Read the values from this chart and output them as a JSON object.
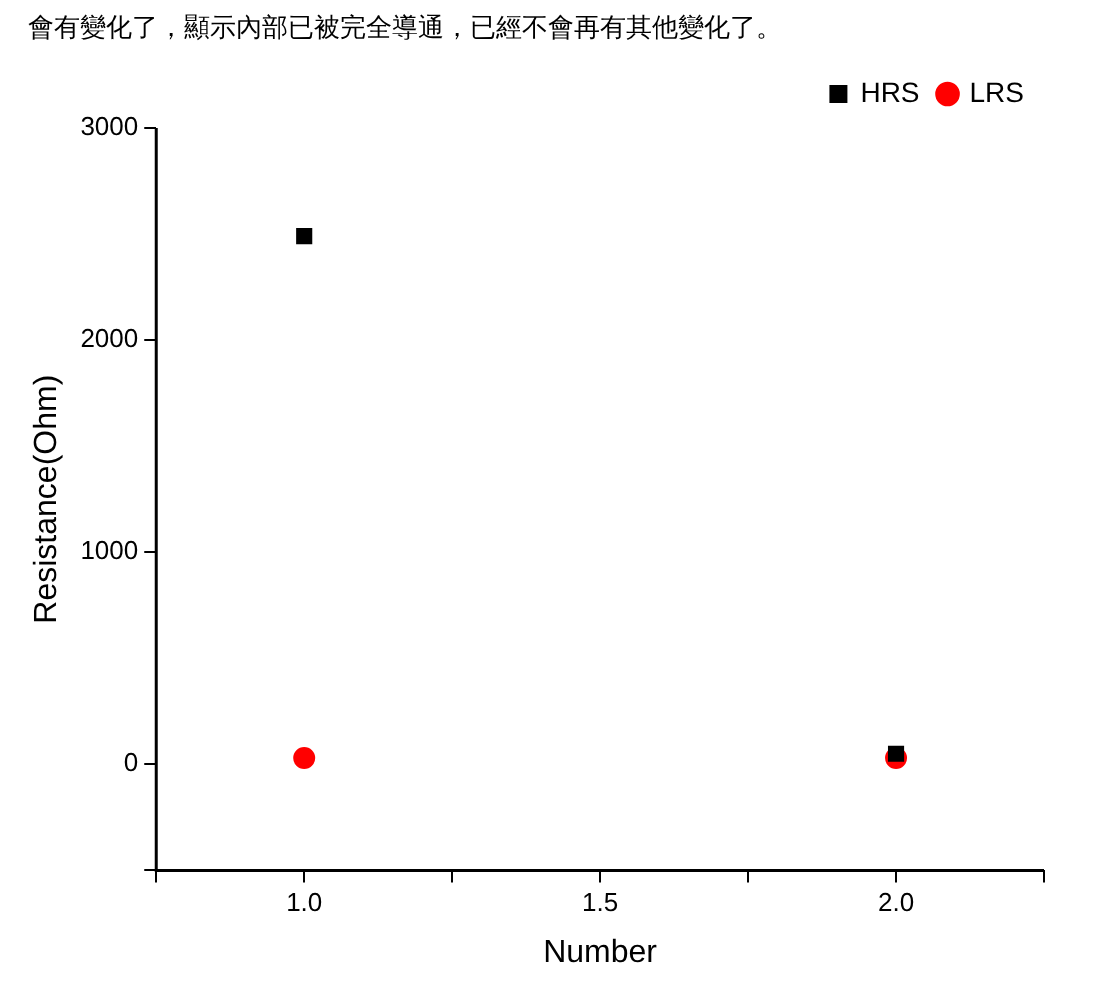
{
  "chart_data": {
    "type": "scatter",
    "annotations": [
      "會有變化了，顯示內部已被完全導通，已經不會再有其他變化了。"
    ],
    "xlabel": "Number",
    "ylabel": "Resistance(Ohm)",
    "x": [
      1.0,
      2.0
    ],
    "series": [
      {
        "name": "HRS",
        "color": "#000000",
        "marker": "square",
        "values": [
          2490,
          50
        ]
      },
      {
        "name": "LRS",
        "color": "#ff0000",
        "marker": "circle",
        "values": [
          30,
          30
        ]
      }
    ],
    "xlim": [
      0.75,
      2.25
    ],
    "xticks": [
      {
        "value": 0.75,
        "label": null
      },
      {
        "value": 1,
        "label": "1.0"
      },
      {
        "value": 1.25,
        "label": null
      },
      1.5,
      {
        "value": 1.75,
        "label": null
      },
      {
        "value": 2,
        "label": "2.0"
      },
      {
        "value": 2.25,
        "label": null
      }
    ],
    "ylim": [
      -500,
      3000
    ],
    "yticks": [
      {
        "value": -500,
        "label": null
      },
      0,
      1000,
      2000,
      3000
    ],
    "grid": false,
    "legend": "top right"
  }
}
